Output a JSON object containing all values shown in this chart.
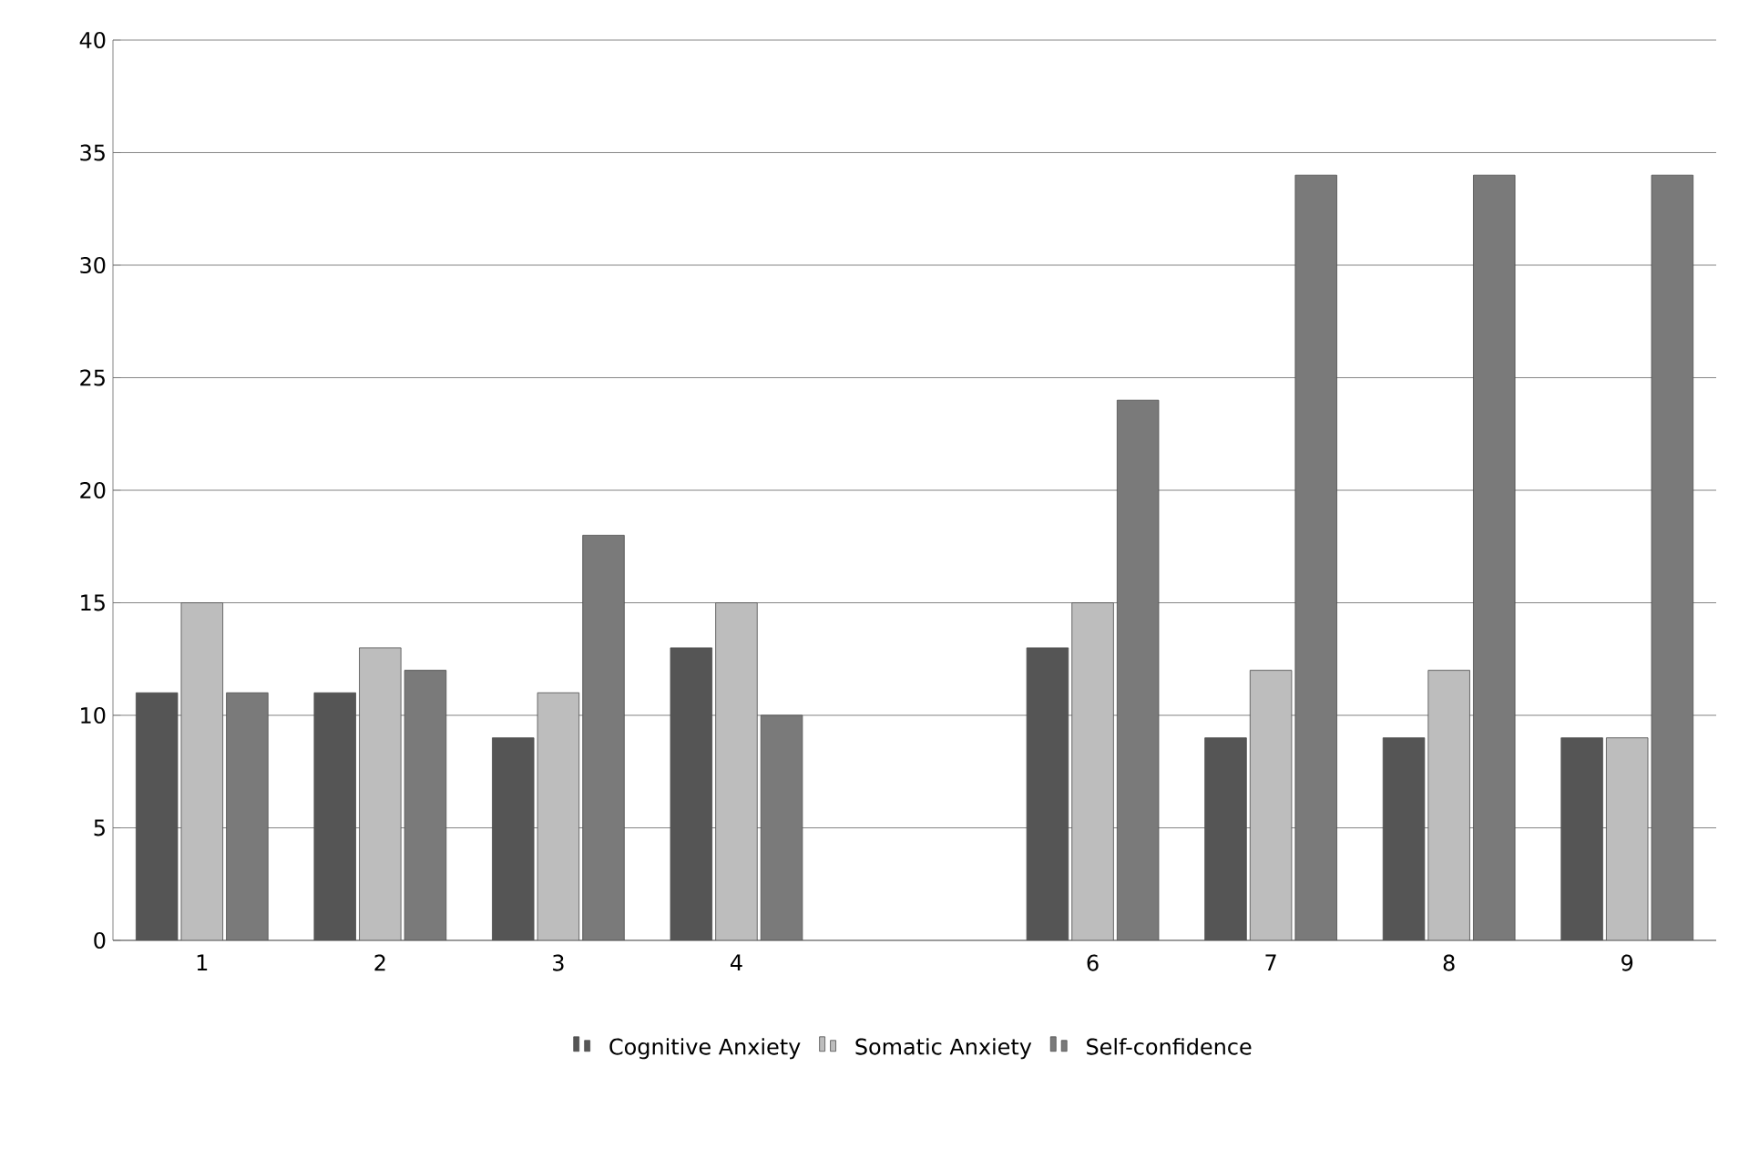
{
  "chart_data": {
    "type": "bar",
    "categories": [
      "1",
      "2",
      "3",
      "4",
      null,
      "6",
      "7",
      "8",
      "9"
    ],
    "series": [
      {
        "name": "Cognitive Anxiety",
        "color": "#555555",
        "values": [
          11,
          11,
          9,
          13,
          null,
          13,
          9,
          9,
          9
        ]
      },
      {
        "name": "Somatic Anxiety",
        "color": "#bdbdbd",
        "values": [
          15,
          13,
          11,
          15,
          null,
          15,
          12,
          12,
          9
        ]
      },
      {
        "name": "Self-confidence",
        "color": "#7a7a7a",
        "values": [
          11,
          12,
          18,
          10,
          null,
          24,
          34,
          34,
          34
        ]
      }
    ],
    "ylim": [
      0,
      40
    ],
    "yticks": [
      0,
      5,
      10,
      15,
      20,
      25,
      30,
      35,
      40
    ],
    "grid": "y",
    "legend": "bottom"
  }
}
